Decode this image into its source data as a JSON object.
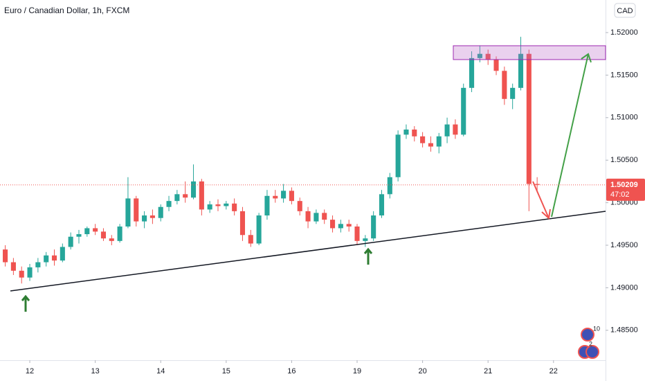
{
  "chart_data": {
    "type": "candlestick",
    "title": "Euro / Canadian Dollar, 1h, FXCM",
    "currency": "CAD",
    "x": [
      -0.375,
      -0.25,
      -0.125,
      0,
      0.125,
      0.25,
      0.375,
      0.5,
      0.625,
      0.75,
      0.875,
      1,
      1.125,
      1.25,
      1.375,
      1.5,
      1.625,
      1.75,
      1.875,
      2,
      2.125,
      2.25,
      2.375,
      2.5,
      2.625,
      2.75,
      2.875,
      3,
      3.125,
      3.25,
      3.375,
      3.5,
      3.625,
      3.75,
      3.875,
      4,
      4.125,
      4.25,
      4.375,
      4.5,
      4.625,
      4.75,
      4.875,
      5,
      5.125,
      5.25,
      5.375,
      5.5,
      5.625,
      5.75,
      5.875,
      6,
      6.125,
      6.25,
      6.375,
      6.5,
      6.625,
      6.75,
      6.875,
      7,
      7.125,
      7.25,
      7.375,
      7.5,
      7.625,
      7.75
    ],
    "values": [
      [
        1.4945,
        1.495,
        1.4925,
        1.493
      ],
      [
        1.493,
        1.4935,
        1.4915,
        1.492
      ],
      [
        1.492,
        1.4925,
        1.4905,
        1.4912
      ],
      [
        1.4912,
        1.4928,
        1.4908,
        1.4924
      ],
      [
        1.4924,
        1.4935,
        1.4918,
        1.493
      ],
      [
        1.493,
        1.4942,
        1.4925,
        1.4938
      ],
      [
        1.4938,
        1.4945,
        1.4926,
        1.4932
      ],
      [
        1.4932,
        1.4952,
        1.493,
        1.4948
      ],
      [
        1.4948,
        1.4965,
        1.4945,
        1.496
      ],
      [
        1.496,
        1.4968,
        1.4952,
        1.4963
      ],
      [
        1.4963,
        1.4972,
        1.496,
        1.497
      ],
      [
        1.497,
        1.4975,
        1.4962,
        1.4966
      ],
      [
        1.4966,
        1.497,
        1.4955,
        1.4958
      ],
      [
        1.4958,
        1.4962,
        1.495,
        1.4955
      ],
      [
        1.4955,
        1.4975,
        1.4953,
        1.4972
      ],
      [
        1.4972,
        1.503,
        1.497,
        1.5005
      ],
      [
        1.5005,
        1.5008,
        1.4972,
        1.4978
      ],
      [
        1.4978,
        1.499,
        1.497,
        1.4985
      ],
      [
        1.4985,
        1.4992,
        1.4975,
        1.4982
      ],
      [
        1.4982,
        1.4998,
        1.4978,
        1.4995
      ],
      [
        1.4995,
        1.5008,
        1.499,
        1.5002
      ],
      [
        1.5002,
        1.5015,
        1.4998,
        1.501
      ],
      [
        1.501,
        1.5025,
        1.5,
        1.5006
      ],
      [
        1.5006,
        1.5045,
        1.5004,
        1.5025
      ],
      [
        1.5025,
        1.5028,
        1.4985,
        1.4992
      ],
      [
        1.4992,
        1.5002,
        1.4988,
        1.4998
      ],
      [
        1.4998,
        1.5004,
        1.499,
        1.4996
      ],
      [
        1.4996,
        1.5002,
        1.4992,
        1.4999
      ],
      [
        1.4999,
        1.5005,
        1.4985,
        1.499
      ],
      [
        1.499,
        1.4995,
        1.4955,
        1.4962
      ],
      [
        1.4962,
        1.4968,
        1.4948,
        1.4952
      ],
      [
        1.4952,
        1.4988,
        1.495,
        1.4985
      ],
      [
        1.4985,
        1.5015,
        1.498,
        1.5008
      ],
      [
        1.5008,
        1.5015,
        1.5,
        1.5005
      ],
      [
        1.5005,
        1.5022,
        1.5,
        1.5014
      ],
      [
        1.5014,
        1.5018,
        1.4998,
        1.5002
      ],
      [
        1.5002,
        1.5006,
        1.4985,
        1.499
      ],
      [
        1.499,
        1.4995,
        1.497,
        1.4978
      ],
      [
        1.4978,
        1.4992,
        1.4975,
        1.4988
      ],
      [
        1.4988,
        1.4992,
        1.4975,
        1.498
      ],
      [
        1.498,
        1.4985,
        1.4965,
        1.497
      ],
      [
        1.497,
        1.498,
        1.4965,
        1.4975
      ],
      [
        1.4975,
        1.498,
        1.4966,
        1.4972
      ],
      [
        1.4972,
        1.4975,
        1.495,
        1.4955
      ],
      [
        1.4955,
        1.4962,
        1.4948,
        1.4958
      ],
      [
        1.4958,
        1.499,
        1.4955,
        1.4985
      ],
      [
        1.4985,
        1.5015,
        1.4982,
        1.501
      ],
      [
        1.501,
        1.5035,
        1.5005,
        1.503
      ],
      [
        1.503,
        1.5085,
        1.5025,
        1.508
      ],
      [
        1.508,
        1.5092,
        1.5075,
        1.5086
      ],
      [
        1.5086,
        1.509,
        1.5072,
        1.5078
      ],
      [
        1.5078,
        1.5083,
        1.5065,
        1.507
      ],
      [
        1.507,
        1.5078,
        1.506,
        1.5066
      ],
      [
        1.5066,
        1.5082,
        1.5058,
        1.5078
      ],
      [
        1.5078,
        1.51,
        1.507,
        1.5092
      ],
      [
        1.5092,
        1.5098,
        1.5075,
        1.508
      ],
      [
        1.508,
        1.514,
        1.5078,
        1.5135
      ],
      [
        1.5135,
        1.5178,
        1.513,
        1.517
      ],
      [
        1.517,
        1.5185,
        1.5165,
        1.5175
      ],
      [
        1.5175,
        1.518,
        1.5162,
        1.5168
      ],
      [
        1.5168,
        1.5172,
        1.515,
        1.5155
      ],
      [
        1.5155,
        1.516,
        1.5115,
        1.5122
      ],
      [
        1.5122,
        1.514,
        1.511,
        1.5135
      ],
      [
        1.5135,
        1.5195,
        1.5132,
        1.5175
      ],
      [
        1.5175,
        1.518,
        1.499,
        1.5022
      ],
      [
        1.5022,
        1.503,
        1.5012,
        1.5021
      ]
    ],
    "up_color": "#26a69a",
    "down_color": "#ef5350",
    "xlim": [
      -0.455,
      8.795
    ],
    "xticks": [
      {
        "value": 0,
        "label": "12"
      },
      {
        "value": 1,
        "label": "13"
      },
      {
        "value": 2,
        "label": "14"
      },
      {
        "value": 3,
        "label": "15"
      },
      {
        "value": 4,
        "label": "16"
      },
      {
        "value": 5,
        "label": "19"
      },
      {
        "value": 6,
        "label": "20"
      },
      {
        "value": 7,
        "label": "21"
      },
      {
        "value": 8,
        "label": "22"
      }
    ],
    "ylim": [
      1.48148,
      1.52383
    ],
    "yticks": [
      {
        "value": 1.485,
        "label": "1.48500"
      },
      {
        "value": 1.49,
        "label": "1.49000"
      },
      {
        "value": 1.495,
        "label": "1.49500"
      },
      {
        "value": 1.5,
        "label": "1.50000"
      },
      {
        "value": 1.505,
        "label": "1.50500"
      },
      {
        "value": 1.51,
        "label": "1.51000"
      },
      {
        "value": 1.515,
        "label": "1.51500"
      },
      {
        "value": 1.52,
        "label": "1.52000"
      }
    ],
    "last_price": 1.50209,
    "countdown": "47:02",
    "badges": [
      10,
      2
    ],
    "grid": false
  }
}
